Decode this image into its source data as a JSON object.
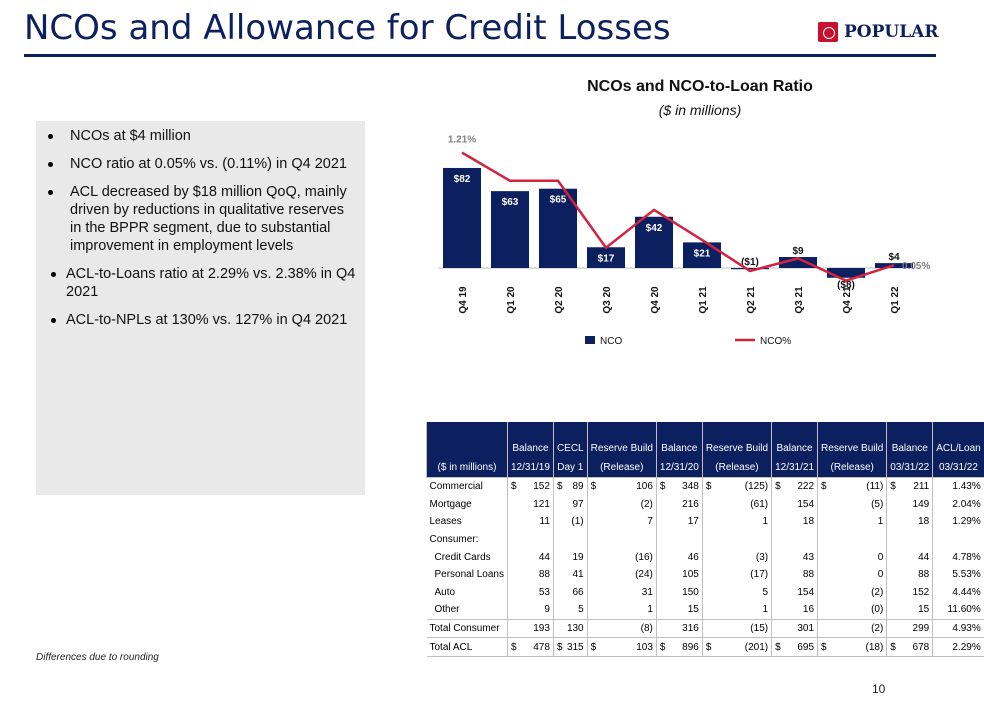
{
  "page": {
    "title": "NCOs and Allowance for Credit Losses",
    "logo_text": "POPULAR",
    "footnote": "Differences due to rounding",
    "page_number": "10"
  },
  "bullets": [
    {
      "text": "NCOs at $4 million",
      "sub": false
    },
    {
      "text": "NCO ratio at 0.05% vs. (0.11%) in Q4 2021",
      "sub": false
    },
    {
      "text": "ACL decreased by $18 million QoQ, mainly driven by reductions in qualitative reserves in the BPPR segment, due to substantial improvement in employment levels",
      "sub": false
    },
    {
      "text": "ACL-to-Loans ratio at 2.29% vs. 2.38% in Q4 2021",
      "sub": true
    },
    {
      "text": "ACL-to-NPLs at 130% vs. 127% in Q4 2021",
      "sub": true
    }
  ],
  "chart_data": {
    "type": "bar",
    "title": "NCOs and NCO-to-Loan Ratio",
    "subtitle": "($ in millions)",
    "categories": [
      "Q4 19",
      "Q1 20",
      "Q2 20",
      "Q3 20",
      "Q4 20",
      "Q1 21",
      "Q2 21",
      "Q3 21",
      "Q4 21",
      "Q1 22"
    ],
    "series": [
      {
        "name": "NCO",
        "values": [
          82,
          63,
          65,
          17,
          42,
          21,
          -1,
          9,
          -8,
          4
        ],
        "labels": [
          "$82",
          "$63",
          "$65",
          "$17",
          "$42",
          "$21",
          "($1)",
          "$9",
          "($8)",
          "$4"
        ],
        "color": "#0c1f5e"
      },
      {
        "name": "NCO%",
        "values": [
          1.21,
          0.92,
          0.92,
          0.23,
          0.62,
          0.31,
          -0.01,
          0.12,
          -0.11,
          0.05
        ],
        "labels": [
          "1.21%",
          "",
          "",
          "",
          "",
          "",
          "",
          "",
          "",
          "0.05%"
        ],
        "color": "#d2233f"
      }
    ],
    "legend": "bottom",
    "grid": false
  },
  "table": {
    "header1": [
      "",
      "Balance",
      "CECL",
      "Reserve Build",
      "Balance",
      "Reserve Build",
      "Balance",
      "Reserve Build",
      "Balance",
      "ACL/Loan"
    ],
    "header2": [
      "($ in millions)",
      "12/31/19",
      "Day 1",
      "(Release)",
      "12/31/20",
      "(Release)",
      "12/31/21",
      "(Release)",
      "03/31/22",
      "03/31/22"
    ],
    "rows": [
      {
        "label": "Commercial",
        "indent": false,
        "dollar": true,
        "cells": [
          "152",
          "89",
          "106",
          "348",
          "(125)",
          "222",
          "(11)",
          "211",
          "1.43%"
        ]
      },
      {
        "label": "Mortgage",
        "indent": false,
        "dollar": false,
        "cells": [
          "121",
          "97",
          "(2)",
          "216",
          "(61)",
          "154",
          "(5)",
          "149",
          "2.04%"
        ]
      },
      {
        "label": "Leases",
        "indent": false,
        "dollar": false,
        "cells": [
          "11",
          "(1)",
          "7",
          "17",
          "1",
          "18",
          "1",
          "18",
          "1.29%"
        ]
      },
      {
        "label": "Consumer:",
        "indent": false,
        "dollar": false,
        "cells": [
          "",
          "",
          "",
          "",
          "",
          "",
          "",
          "",
          ""
        ]
      },
      {
        "label": "Credit Cards",
        "indent": true,
        "dollar": false,
        "cells": [
          "44",
          "19",
          "(16)",
          "46",
          "(3)",
          "43",
          "0",
          "44",
          "4.78%"
        ]
      },
      {
        "label": "Personal Loans",
        "indent": true,
        "dollar": false,
        "cells": [
          "88",
          "41",
          "(24)",
          "105",
          "(17)",
          "88",
          "0",
          "88",
          "5.53%"
        ]
      },
      {
        "label": "Auto",
        "indent": true,
        "dollar": false,
        "cells": [
          "53",
          "66",
          "31",
          "150",
          "5",
          "154",
          "(2)",
          "152",
          "4.44%"
        ]
      },
      {
        "label": "Other",
        "indent": true,
        "dollar": false,
        "cells": [
          "9",
          "5",
          "1",
          "15",
          "1",
          "16",
          "(0)",
          "15",
          "11.60%"
        ]
      },
      {
        "label": "Total Consumer",
        "indent": false,
        "dollar": false,
        "cells": [
          "193",
          "130",
          "(8)",
          "316",
          "(15)",
          "301",
          "(2)",
          "299",
          "4.93%"
        ]
      },
      {
        "label": "Total ACL",
        "indent": false,
        "dollar": true,
        "cells": [
          "478",
          "315",
          "103",
          "896",
          "(201)",
          "695",
          "(18)",
          "678",
          "2.29%"
        ]
      }
    ],
    "dollar_sign": "$"
  }
}
